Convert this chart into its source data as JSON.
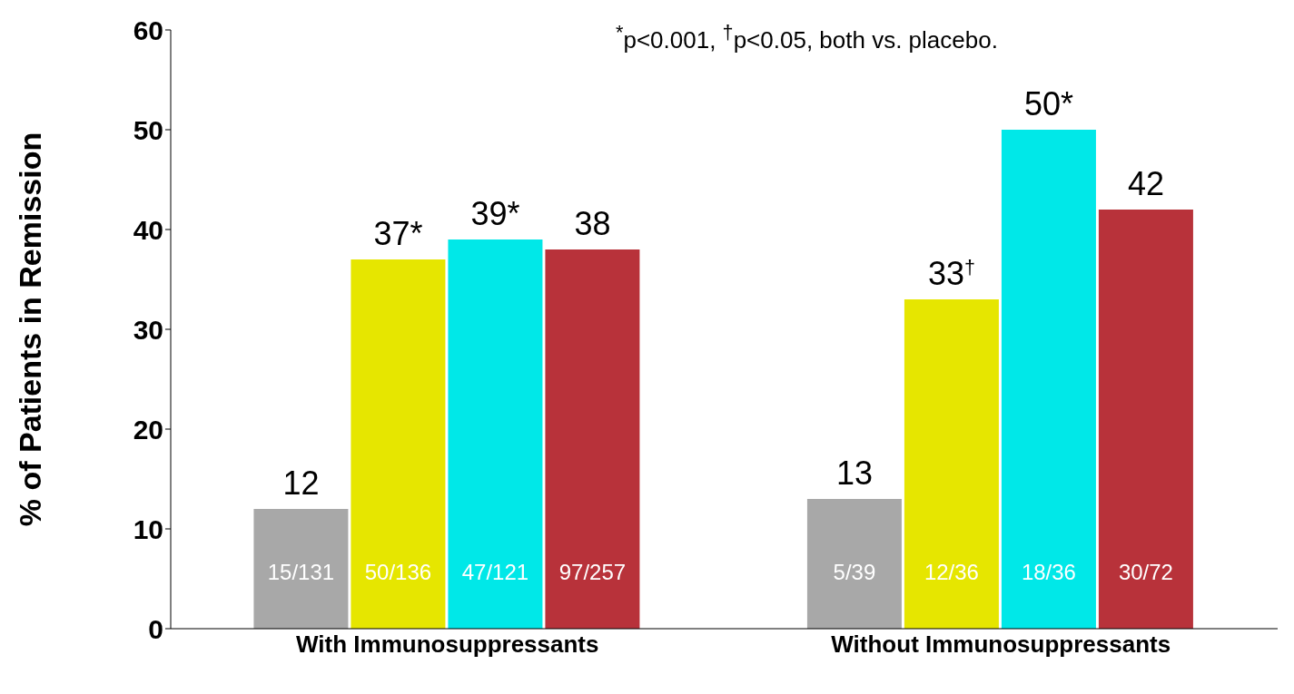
{
  "chart_data": {
    "type": "bar",
    "ylabel": "% of Patients in Remission",
    "categories": [
      "With Immunosuppressants",
      "Without Immunosuppressants"
    ],
    "series": [
      {
        "color": "#a8a8a8",
        "values": [
          12,
          13
        ],
        "value_labels": [
          "12",
          "13"
        ]
      },
      {
        "color": "#e6e600",
        "values": [
          37,
          33
        ],
        "value_labels": [
          "37*",
          "33$^{†}$"
        ]
      },
      {
        "color": "#00e8e8",
        "values": [
          39,
          50
        ],
        "value_labels": [
          "39*",
          "50*"
        ]
      },
      {
        "color": "#b8323a",
        "values": [
          38,
          42
        ],
        "value_labels": [
          "38",
          "42"
        ]
      }
    ],
    "ylim": [
      0,
      60
    ],
    "yticks": [
      0,
      10,
      20,
      30,
      40,
      50,
      60
    ],
    "grid": false,
    "legend": false,
    "annotations": [
      "$^{*}$p<0.001, $^{†}$p<0.05, both vs. placebo.",
      "15/131",
      "50/136",
      "47/121",
      "97/257",
      "5/39",
      "12/36",
      "18/36",
      "30/72"
    ]
  }
}
